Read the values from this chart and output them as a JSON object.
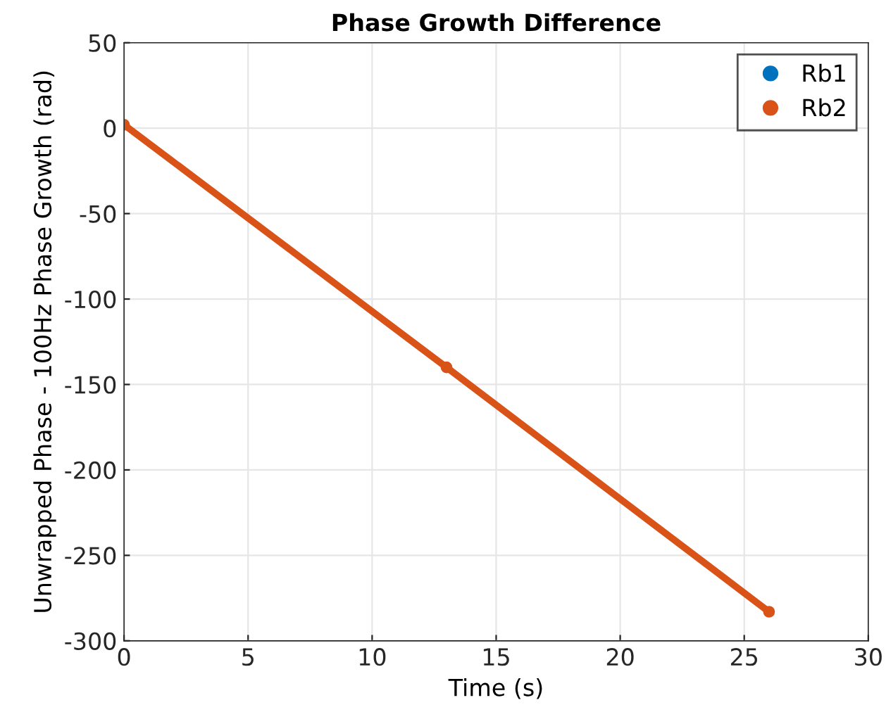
{
  "chart_data": {
    "type": "line",
    "title": "Phase Growth Difference",
    "xlabel": "Time (s)",
    "ylabel": "Unwrapped Phase - 100Hz Phase Growth (rad)",
    "series": [
      {
        "name": "Rb1",
        "color": "#0072bd",
        "values": [
          null,
          null,
          null
        ]
      },
      {
        "name": "Rb2",
        "color": "#d95319",
        "values": [
          2,
          -140,
          -283
        ]
      }
    ],
    "x": [
      0,
      13,
      26
    ],
    "xlim": [
      0,
      30
    ],
    "xticks": [
      0,
      5,
      10,
      15,
      20,
      25,
      30
    ],
    "ylim": [
      -300,
      50
    ],
    "yticks": [
      -300,
      -250,
      -200,
      -150,
      -100,
      -50,
      0,
      50
    ],
    "grid": true,
    "legend": "top right",
    "marker": "circle"
  }
}
